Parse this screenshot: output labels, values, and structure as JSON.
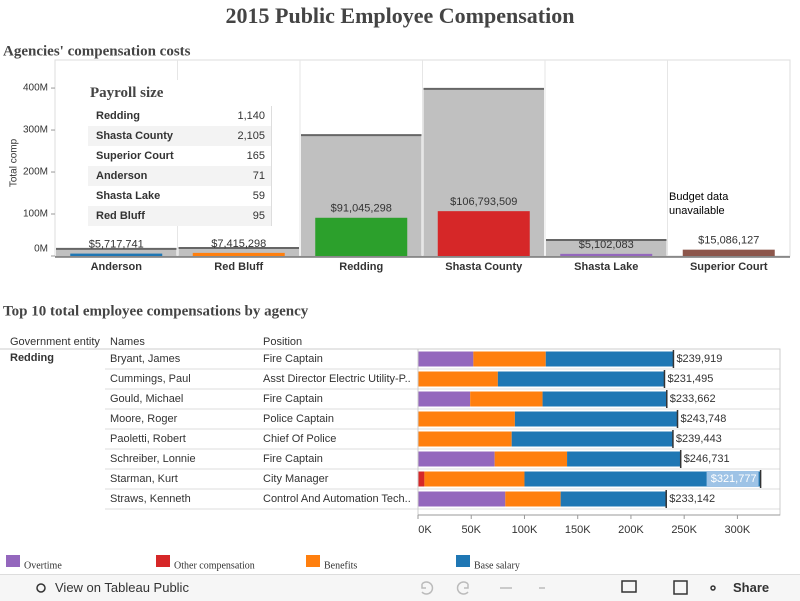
{
  "title": "2015 Public Employee Compensation",
  "chart_data": [
    {
      "type": "bar",
      "title": "Agencies' compensation costs",
      "ylabel": "Total comp",
      "categories": [
        "Anderson",
        "Red Bluff",
        "Redding",
        "Shasta County",
        "Shasta Lake",
        "Superior Court"
      ],
      "series": [
        {
          "color": "#c0c0c0",
          "values": [
            17000000,
            19000000,
            288000000,
            398000000,
            38000000,
            null
          ]
        },
        {
          "colors": [
            "#1f77b4",
            "#ff7f0e",
            "#2ca02c",
            "#d62728",
            "#9467bd",
            "#8c564b"
          ],
          "values": [
            5717741,
            7415298,
            91045298,
            106793509,
            5102083,
            15086127
          ],
          "value_labels": [
            "$5,717,741",
            "$7,415,298",
            "$91,045,298",
            "$106,793,509",
            "$5,102,083",
            "$15,086,127"
          ]
        }
      ],
      "annotation": "Budget data unavailable",
      "ylim": [
        0,
        443000000
      ],
      "yticks": [
        {
          "value": 0,
          "label": "0M"
        },
        {
          "value": 100000000,
          "label": "100M"
        },
        {
          "value": 200000000,
          "label": "200M"
        },
        {
          "value": 300000000,
          "label": "300M"
        },
        {
          "value": 400000000,
          "label": "400M"
        }
      ]
    },
    {
      "type": "stacked-bar-horizontal",
      "title": "Top 10 total employee compensations by agency",
      "column_headers": [
        "Government entity",
        "Names",
        "Position"
      ],
      "group": "Redding",
      "categories": [
        "Bryant, James",
        "Cummings, Paul",
        "Gould, Michael",
        "Moore, Roger",
        "Paoletti, Robert",
        "Schreiber, Lonnie",
        "Starman, Kurt",
        "Straws, Kenneth"
      ],
      "positions": [
        "Fire Captain",
        "Asst Director Electric Utility-P..",
        "Fire Captain",
        "Police Captain",
        "Chief Of Police",
        "Fire Captain",
        "City Manager",
        "Control And Automation Tech.."
      ],
      "series": [
        {
          "name": "Overtime",
          "color": "#9467bd",
          "values": [
            52000,
            0,
            49000,
            0,
            0,
            72000,
            0,
            82000
          ]
        },
        {
          "name": "Other compensation",
          "color": "#d62728",
          "values": [
            0,
            0,
            0,
            0,
            0,
            0,
            6000,
            0
          ]
        },
        {
          "name": "Benefits",
          "color": "#ff7f0e",
          "values": [
            68000,
            75000,
            68000,
            91000,
            88000,
            68000,
            94000,
            52000
          ]
        },
        {
          "name": "Base salary",
          "color": "#1f77b4",
          "values": [
            119919,
            156495,
            116662,
            152748,
            151443,
            106731,
            221777,
            99142
          ]
        }
      ],
      "totals": [
        239919,
        231495,
        233662,
        243748,
        239443,
        246731,
        321777,
        233142
      ],
      "totals_labels": [
        "$239,919",
        "$231,495",
        "$233,662",
        "$243,748",
        "$239,443",
        "$246,731",
        "$321,777",
        "$233,142"
      ],
      "xlim": [
        0,
        340000
      ],
      "xticks": [
        {
          "value": 0,
          "label": "0K"
        },
        {
          "value": 50000,
          "label": "50K"
        },
        {
          "value": 100000,
          "label": "100K"
        },
        {
          "value": 150000,
          "label": "150K"
        },
        {
          "value": 200000,
          "label": "200K"
        },
        {
          "value": 250000,
          "label": "250K"
        },
        {
          "value": 300000,
          "label": "300K"
        }
      ]
    }
  ],
  "payroll_table": {
    "title": "Payroll size",
    "rows": [
      [
        "Redding",
        "1,140"
      ],
      [
        "Shasta County",
        "2,105"
      ],
      [
        "Superior Court",
        "165"
      ],
      [
        "Anderson",
        "71"
      ],
      [
        "Shasta Lake",
        "59"
      ],
      [
        "Red Bluff",
        "95"
      ]
    ]
  },
  "toolbar": {
    "view": "View on Tableau Public",
    "share": "Share"
  }
}
